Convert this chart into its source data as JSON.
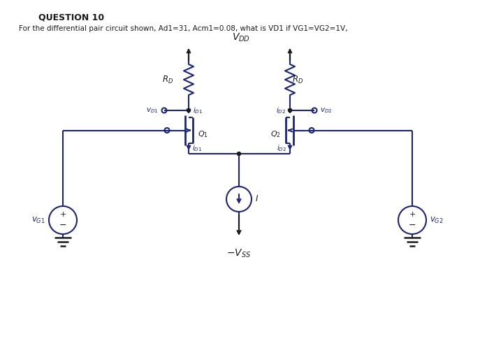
{
  "title": "QUESTION 10",
  "subtitle": "For the differential pair circuit shown, Ad1=31, Acm1=0.08, what is VD1 if VG1=VG2=1V,",
  "bg_color": "#ffffff",
  "line_color": "#1a237e",
  "text_color": "#1a237e",
  "dark_color": "#1a1a1a",
  "vdd_label": "$V_{DD}$",
  "vss_label": "$-V_{SS}$",
  "rd_label": "$R_D$",
  "q1_label": "$Q_1$",
  "q2_label": "$Q_2$",
  "vd1_label": "$v_{D1}$",
  "vd2_label": "$v_{D2}$",
  "id1_label_top": "$i_{D1}$",
  "id1_label_bot": "$i_{D1}$",
  "id2_label_top": "$i_{D2}$",
  "id2_label_bot": "$i_{D2}$",
  "vg1_label": "$v_{G1}$",
  "vg2_label": "$v_{G2}$",
  "I_label": "$I$",
  "figw": 6.87,
  "figh": 4.88,
  "dpi": 100
}
